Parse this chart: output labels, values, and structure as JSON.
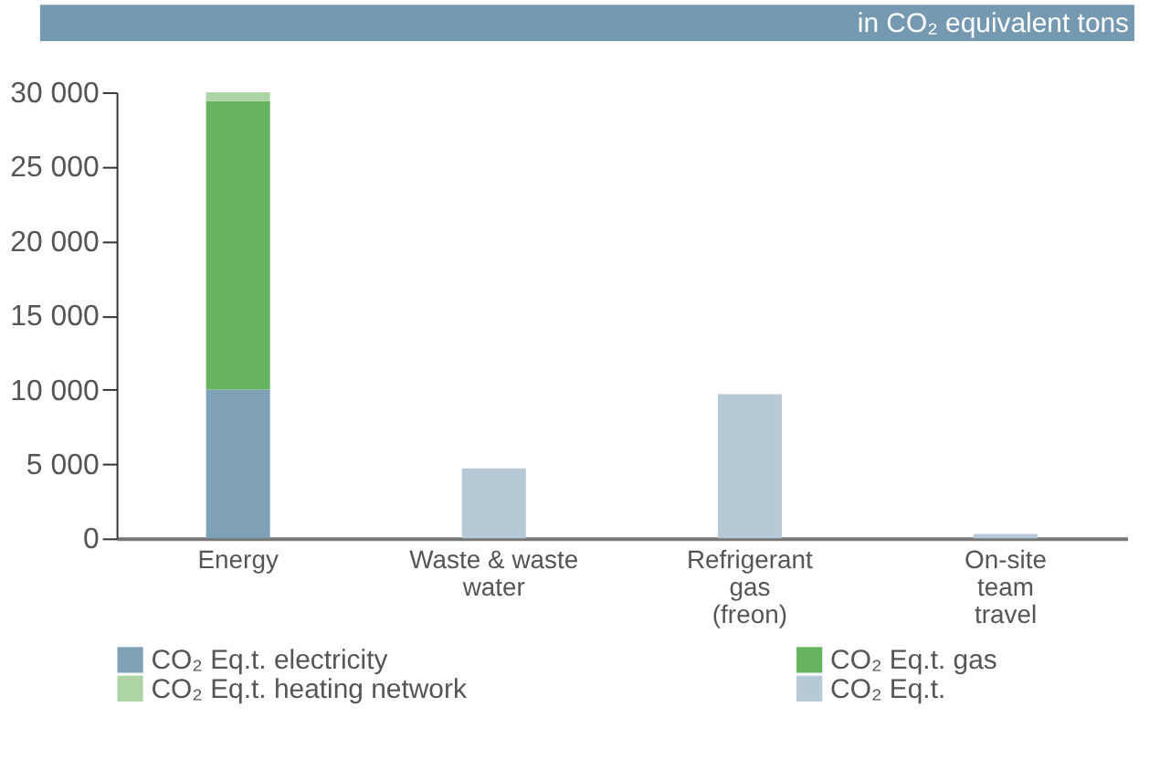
{
  "chart_data": {
    "type": "bar",
    "subtitle": "in CO₂ equivalent tons",
    "stacked": true,
    "categories": [
      "Energy",
      "Waste & waste\nwater",
      "Refrigerant\ngas\n(freon)",
      "On-site\nteam\ntravel"
    ],
    "series": [
      {
        "name": "CO₂ Eq.t.  electricity",
        "color": "#7fa1b6",
        "values": [
          10000,
          0,
          0,
          0
        ]
      },
      {
        "name": "CO₂ Eq.t. gas",
        "color": "#66b360",
        "values": [
          19400,
          0,
          0,
          0
        ]
      },
      {
        "name": "CO₂ Eq.t. heating network",
        "color": "#acd4a4",
        "values": [
          600,
          0,
          0,
          0
        ]
      },
      {
        "name": "CO₂ Eq.t.",
        "color": "#b6c9d6",
        "values": [
          0,
          4700,
          9700,
          300
        ]
      }
    ],
    "ylim": [
      0,
      30000
    ],
    "yticks": [
      {
        "value": 0,
        "label": "0"
      },
      {
        "value": 5000,
        "label": "5 000"
      },
      {
        "value": 10000,
        "label": "10 000"
      },
      {
        "value": 15000,
        "label": "15 000"
      },
      {
        "value": 20000,
        "label": "20 000"
      },
      {
        "value": 25000,
        "label": "25 000"
      },
      {
        "value": 30000,
        "label": "30 000"
      }
    ],
    "grid": false,
    "legend": "bottom"
  }
}
